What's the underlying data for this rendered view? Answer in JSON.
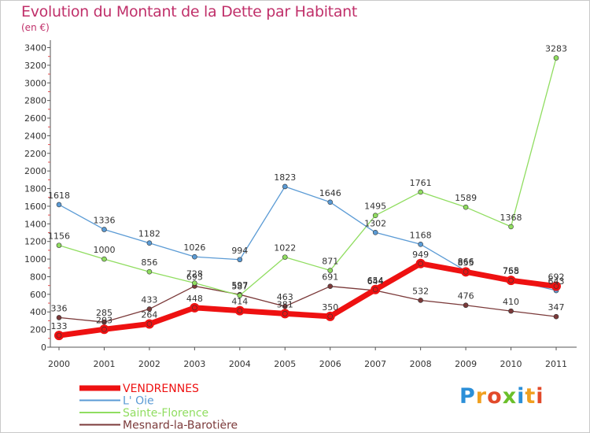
{
  "header": {
    "title": "Evolution du Montant de la Dette par Habitant",
    "subtitle": "(en €)"
  },
  "logo": {
    "text": "Proxiti"
  },
  "chart_data": {
    "type": "line",
    "x": [
      "2000",
      "2001",
      "2002",
      "2003",
      "2004",
      "2005",
      "2006",
      "2007",
      "2008",
      "2009",
      "2010",
      "2011"
    ],
    "y_ticks": [
      0,
      200,
      400,
      600,
      800,
      1000,
      1200,
      1400,
      1600,
      1800,
      2000,
      2200,
      2400,
      2600,
      2800,
      3000,
      3200,
      3400
    ],
    "ylim": [
      0,
      3400
    ],
    "grid": false,
    "legend_position": "bottom-left",
    "series": [
      {
        "name": "VENDRENNES",
        "color": "#ee1111",
        "values": [
          133,
          203,
          264,
          448,
          414,
          381,
          350,
          654,
          949,
          855,
          758,
          692
        ],
        "labels": [
          "133",
          "203",
          "264",
          "448",
          "414",
          "381",
          "350",
          "654",
          "949",
          "855",
          "758",
          "692"
        ]
      },
      {
        "name": "L' Oie",
        "color": "#5b9bd5",
        "values": [
          1618,
          1336,
          1182,
          1026,
          994,
          1823,
          1646,
          1302,
          1168,
          866,
          765,
          643
        ],
        "labels": [
          "1618",
          "1336",
          "1182",
          "1026",
          "994",
          "1823",
          "1646",
          "1302",
          "1168",
          "866",
          "765",
          "643"
        ]
      },
      {
        "name": "Sainte-Florence",
        "color": "#90dd60",
        "values": [
          1156,
          1000,
          856,
          728,
          587,
          1022,
          871,
          1495,
          1761,
          1589,
          1368,
          3283
        ],
        "labels": [
          "1156",
          "1000",
          "856",
          "728",
          "587",
          "1022",
          "871",
          "1495",
          "1761",
          "1589",
          "1368",
          "3283"
        ]
      },
      {
        "name": "Mesnard-la-Barotière",
        "color": "#7b3a3a",
        "values": [
          336,
          285,
          433,
          693,
          597,
          463,
          691,
          644,
          532,
          476,
          410,
          347
        ],
        "labels": [
          "336",
          "285",
          "433",
          "693",
          "597",
          "463",
          "691",
          "644",
          "532",
          "476",
          "410",
          "347"
        ]
      }
    ]
  }
}
